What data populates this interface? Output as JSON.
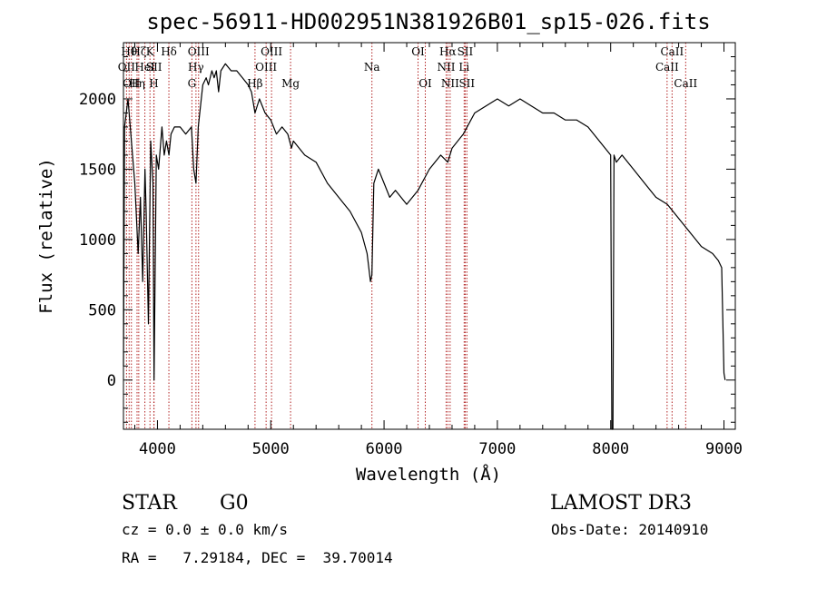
{
  "chart_data": {
    "type": "line",
    "title": "spec-56911-HD002951N381926B01_sp15-026.fits",
    "xlabel": "Wavelength (Å)",
    "ylabel": "Flux (relative)",
    "xlim": [
      3700,
      9100
    ],
    "ylim": [
      -350,
      2400
    ],
    "xticks": [
      4000,
      5000,
      6000,
      7000,
      8000,
      9000
    ],
    "yticks": [
      0,
      500,
      1000,
      1500,
      2000
    ],
    "grid": false,
    "series": [
      {
        "x": [
          3700,
          3710,
          3740,
          3800,
          3830,
          3850,
          3870,
          3890,
          3900,
          3920,
          3940,
          3960,
          3970,
          3990,
          4010,
          4040,
          4060,
          4080,
          4101,
          4120,
          4150,
          4200,
          4250,
          4300,
          4320,
          4340,
          4360,
          4380,
          4400,
          4430,
          4450,
          4480,
          4500,
          4520,
          4540,
          4560,
          4600,
          4650,
          4700,
          4750,
          4800,
          4830,
          4861,
          4900,
          4950,
          5000,
          5050,
          5100,
          5150,
          5183,
          5200,
          5300,
          5400,
          5500,
          5600,
          5700,
          5800,
          5850,
          5880,
          5893,
          5910,
          5950,
          6000,
          6050,
          6100,
          6200,
          6250,
          6300,
          6400,
          6500,
          6563,
          6600,
          6700,
          6800,
          6900,
          7000,
          7100,
          7200,
          7300,
          7400,
          7500,
          7600,
          7700,
          7800,
          7900,
          8000,
          8010,
          8020,
          8030,
          8050,
          8100,
          8200,
          8300,
          8400,
          8500,
          8600,
          8700,
          8800,
          8900,
          8950,
          8980,
          9000,
          9010
        ],
        "y": [
          100,
          1800,
          2000,
          1400,
          900,
          1300,
          700,
          1500,
          1200,
          400,
          1700,
          1400,
          0,
          1600,
          1500,
          1800,
          1600,
          1700,
          1600,
          1750,
          1800,
          1800,
          1750,
          1800,
          1500,
          1400,
          1800,
          1950,
          2100,
          2150,
          2100,
          2200,
          2150,
          2200,
          2050,
          2200,
          2250,
          2200,
          2200,
          2150,
          2100,
          2050,
          1900,
          2000,
          1900,
          1850,
          1750,
          1800,
          1750,
          1650,
          1700,
          1600,
          1550,
          1400,
          1300,
          1200,
          1050,
          900,
          700,
          750,
          1400,
          1500,
          1400,
          1300,
          1350,
          1250,
          1300,
          1350,
          1500,
          1600,
          1550,
          1650,
          1750,
          1900,
          1950,
          2000,
          1950,
          2000,
          1950,
          1900,
          1900,
          1850,
          1850,
          1800,
          1700,
          1600,
          -350,
          -350,
          1600,
          1550,
          1600,
          1500,
          1400,
          1300,
          1250,
          1150,
          1050,
          950,
          900,
          850,
          800,
          50,
          0
        ]
      }
    ],
    "line_markers": [
      {
        "wl": 3727,
        "label": "OII",
        "row": 2
      },
      {
        "wl": 3750,
        "label": "Hθ",
        "row": 1
      },
      {
        "wl": 3770,
        "label": "OII",
        "row": 3
      },
      {
        "wl": 3820,
        "label": "Hη",
        "row": 3
      },
      {
        "wl": 3835,
        "label": "Hζ",
        "row": 1
      },
      {
        "wl": 3889,
        "label": "HeI",
        "row": 2
      },
      {
        "wl": 3934,
        "label": "K",
        "row": 1
      },
      {
        "wl": 3968,
        "label": "H",
        "row": 3
      },
      {
        "wl": 3970,
        "label": "SII",
        "row": 2
      },
      {
        "wl": 4101,
        "label": "Hδ",
        "row": 1
      },
      {
        "wl": 4304,
        "label": "G",
        "row": 3
      },
      {
        "wl": 4340,
        "label": "Hγ",
        "row": 2
      },
      {
        "wl": 4363,
        "label": "OIII",
        "row": 1
      },
      {
        "wl": 4861,
        "label": "Hβ",
        "row": 3
      },
      {
        "wl": 4959,
        "label": "OIII",
        "row": 2
      },
      {
        "wl": 5007,
        "label": "OIII",
        "row": 1
      },
      {
        "wl": 5175,
        "label": "Mg",
        "row": 3
      },
      {
        "wl": 5893,
        "label": "Na",
        "row": 2
      },
      {
        "wl": 6300,
        "label": "OI",
        "row": 1
      },
      {
        "wl": 6364,
        "label": "OI",
        "row": 3
      },
      {
        "wl": 6548,
        "label": "NII",
        "row": 2
      },
      {
        "wl": 6563,
        "label": "Hα",
        "row": 1
      },
      {
        "wl": 6583,
        "label": "NII",
        "row": 3
      },
      {
        "wl": 6707,
        "label": "Li",
        "row": 2
      },
      {
        "wl": 6716,
        "label": "SII",
        "row": 1
      },
      {
        "wl": 6731,
        "label": "SII",
        "row": 3
      },
      {
        "wl": 8498,
        "label": "CaII",
        "row": 2
      },
      {
        "wl": 8542,
        "label": "CaII",
        "row": 1
      },
      {
        "wl": 8662,
        "label": "CaII",
        "row": 3
      }
    ]
  },
  "info": {
    "class": "STAR",
    "subclass": "G0",
    "survey": "LAMOST DR3",
    "cz": "cz = 0.0 ± 0.0 km/s",
    "obs_date": "Obs-Date: 20140910",
    "coords": "RA =   7.29184, DEC =  39.70014"
  },
  "colors": {
    "spectrum": "#000000",
    "marker": "#b22222",
    "background": "#ffffff"
  }
}
